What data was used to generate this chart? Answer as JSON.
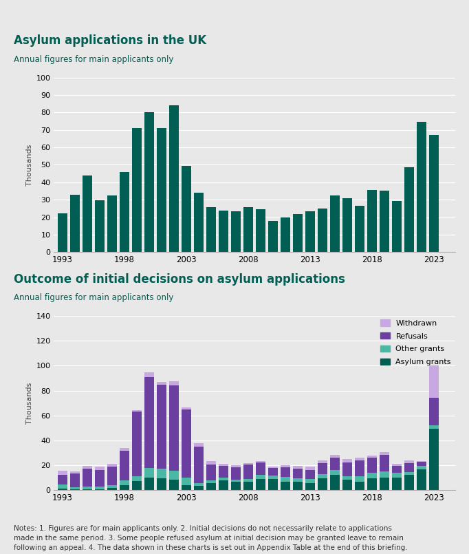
{
  "chart1_title": "Asylum applications in the UK",
  "chart1_subtitle": "Annual figures for main applicants only",
  "chart2_title": "Outcome of initial decisions on asylum applications",
  "chart2_subtitle": "Annual figures for main applicants only",
  "notes": "Notes: 1. Figures are for main applicants only. 2. Initial decisions do not necessarily relate to applications\nmade in the same period. 3. Some people refused asylum at initial decision may be granted leave to remain\nfollowing an appeal. 4. The data shown in these charts is set out in Appendix Table at the end of this briefing.",
  "years": [
    1993,
    1994,
    1995,
    1996,
    1997,
    1998,
    1999,
    2000,
    2001,
    2002,
    2003,
    2004,
    2005,
    2006,
    2007,
    2008,
    2009,
    2010,
    2011,
    2012,
    2013,
    2014,
    2015,
    2016,
    2017,
    2018,
    2019,
    2020,
    2021,
    2022,
    2023
  ],
  "applications": [
    22370,
    32830,
    43965,
    29640,
    32500,
    46015,
    71160,
    80315,
    71025,
    84130,
    49405,
    33960,
    25710,
    23610,
    23430,
    25930,
    24485,
    17790,
    19805,
    21785,
    23507,
    24914,
    32414,
    30747,
    26547,
    35566,
    35099,
    29456,
    48540,
    74751,
    67337
  ],
  "asylum_grants": [
    1600,
    820,
    1010,
    690,
    2075,
    3910,
    7145,
    10375,
    9635,
    8270,
    4215,
    3495,
    5945,
    7920,
    6640,
    6960,
    9285,
    8990,
    7000,
    6625,
    5790,
    9655,
    12171,
    8388,
    7040,
    9480,
    10440,
    9960,
    12227,
    16553,
    49345
  ],
  "other_grants": [
    2890,
    1420,
    2135,
    2175,
    1810,
    4180,
    4310,
    7285,
    7575,
    7410,
    6160,
    2215,
    2165,
    2050,
    2100,
    2380,
    2995,
    2795,
    3830,
    3025,
    3035,
    3365,
    3985,
    2813,
    4325,
    4525,
    4705,
    3985,
    2275,
    3165,
    2840
  ],
  "refusals": [
    8085,
    11320,
    14380,
    13620,
    15260,
    23885,
    51495,
    73180,
    67475,
    68425,
    54205,
    29430,
    12375,
    9455,
    9895,
    11165,
    9925,
    6340,
    7640,
    7660,
    7690,
    8770,
    10140,
    10975,
    12820,
    12240,
    13500,
    5590,
    7155,
    3020,
    22090
  ],
  "withdrawn": [
    3245,
    1510,
    1820,
    2515,
    1885,
    1720,
    1540,
    3965,
    2080,
    3185,
    2085,
    2725,
    3060,
    2020,
    1545,
    1250,
    1460,
    1095,
    1590,
    2200,
    2430,
    2225,
    2345,
    2820,
    1840,
    1790,
    1820,
    1545,
    2060,
    890,
    25945
  ],
  "bar_color1": "#005e52",
  "color_asylum_grants": "#005e52",
  "color_other_grants": "#4ab8a4",
  "color_refusals": "#6b3fa0",
  "color_withdrawn": "#c8a8e0",
  "title_color": "#005e52",
  "subtitle_color": "#005e52",
  "background_color": "#e8e8e8",
  "notes_color": "#333333",
  "ylabel": "Thousands",
  "chart1_ylim": [
    0,
    100
  ],
  "chart1_yticks": [
    0,
    10,
    20,
    30,
    40,
    50,
    60,
    70,
    80,
    90,
    100
  ],
  "chart2_ylim": [
    0,
    140
  ],
  "chart2_yticks": [
    0,
    20,
    40,
    60,
    80,
    100,
    120,
    140
  ],
  "xticks": [
    1993,
    1998,
    2003,
    2008,
    2013,
    2018,
    2023
  ]
}
